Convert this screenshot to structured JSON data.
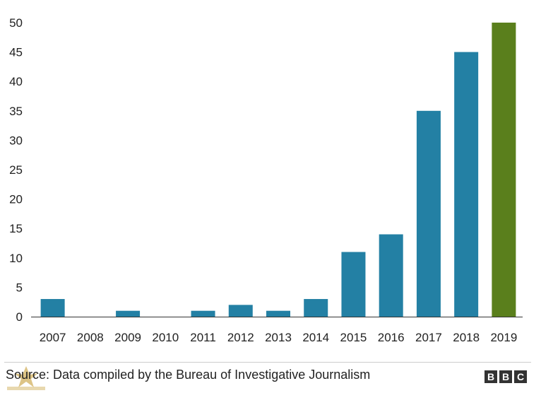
{
  "chart_data": {
    "type": "bar",
    "categories": [
      "2007",
      "2008",
      "2009",
      "2010",
      "2011",
      "2012",
      "2013",
      "2014",
      "2015",
      "2016",
      "2017",
      "2018",
      "2019"
    ],
    "values": [
      3,
      0,
      1,
      0,
      1,
      2,
      1,
      3,
      11,
      14,
      35,
      45,
      50
    ],
    "title": "",
    "xlabel": "",
    "ylabel": "",
    "ylim": [
      0,
      50
    ],
    "yticks": [
      0,
      5,
      10,
      15,
      20,
      25,
      30,
      35,
      40,
      45,
      50
    ],
    "grid": false,
    "bar_color": "#2380a4",
    "highlight_color": "#5a7f1c",
    "highlight_category": "2019"
  },
  "footer": {
    "source": "Source: Data compiled by the Bureau of Investigative Journalism",
    "logo_letters": [
      "B",
      "B",
      "C"
    ]
  }
}
